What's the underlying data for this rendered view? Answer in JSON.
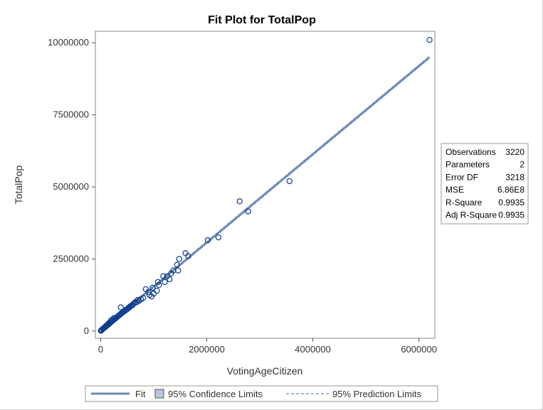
{
  "chart_data": {
    "type": "scatter",
    "title": "Fit Plot for TotalPop",
    "xlabel": "VotingAgeCitizen",
    "ylabel": "TotalPop",
    "xlim": [
      -100000,
      6300000
    ],
    "ylim": [
      -250000,
      10400000
    ],
    "x_ticks": [
      0,
      2000000,
      4000000,
      6000000
    ],
    "x_tick_labels": [
      "0",
      "2000000",
      "4000000",
      "6000000"
    ],
    "y_ticks": [
      0,
      2500000,
      5000000,
      7500000,
      10000000
    ],
    "y_tick_labels": [
      "0",
      "2500000",
      "5000000",
      "7500000",
      "10000000"
    ],
    "fit_line": {
      "x": [
        0,
        6200000
      ],
      "y": [
        10000,
        9500000
      ]
    },
    "points": {
      "x": [
        6200000,
        3560000,
        2620000,
        2780000,
        2020000,
        2220000,
        1600000,
        1650000,
        1480000,
        1440000,
        1370000,
        1460000,
        1330000,
        1250000,
        1210000,
        1180000,
        1080000,
        1100000,
        1060000,
        1300000,
        980000,
        1000000,
        900000,
        850000,
        920000,
        960000,
        800000,
        760000,
        720000,
        700000,
        680000,
        650000,
        620000,
        600000,
        580000,
        560000,
        540000,
        520000,
        500000,
        480000,
        460000,
        440000,
        420000,
        400000,
        380000,
        360000,
        340000,
        320000,
        300000,
        280000,
        260000,
        240000,
        220000,
        200000,
        180000,
        160000,
        140000,
        120000,
        100000,
        80000,
        60000,
        40000,
        20000,
        10000,
        5000,
        380000,
        250000,
        200000,
        150000,
        100000,
        50000
      ],
      "y": [
        10100000,
        5200000,
        4500000,
        4150000,
        3150000,
        3250000,
        2700000,
        2600000,
        2500000,
        2300000,
        2100000,
        2100000,
        2000000,
        1900000,
        1700000,
        1900000,
        1700000,
        1600000,
        1400000,
        1800000,
        1500000,
        1300000,
        1350000,
        1450000,
        1250000,
        1200000,
        1150000,
        1100000,
        1050000,
        1080000,
        1000000,
        1000000,
        950000,
        900000,
        880000,
        860000,
        820000,
        800000,
        760000,
        740000,
        700000,
        680000,
        660000,
        620000,
        600000,
        560000,
        540000,
        500000,
        470000,
        440000,
        410000,
        380000,
        350000,
        320000,
        290000,
        250000,
        220000,
        190000,
        160000,
        130000,
        100000,
        70000,
        40000,
        20000,
        10000,
        820000,
        450000,
        380000,
        270000,
        180000,
        90000
      ]
    },
    "stats_table": [
      [
        "Observations",
        "3220"
      ],
      [
        "Parameters",
        "2"
      ],
      [
        "Error DF",
        "3218"
      ],
      [
        "MSE",
        "6.86E8"
      ],
      [
        "R-Square",
        "0.9935"
      ],
      [
        "Adj R-Square",
        "0.9935"
      ]
    ],
    "legend": {
      "placement": "bottom",
      "items": [
        "Fit",
        "95% Confidence Limits",
        "95% Prediction Limits"
      ]
    },
    "colors": {
      "points": "#0c3a8c",
      "fit": "#6d8ab8",
      "confidence_fill": "#b8c8e2"
    }
  }
}
